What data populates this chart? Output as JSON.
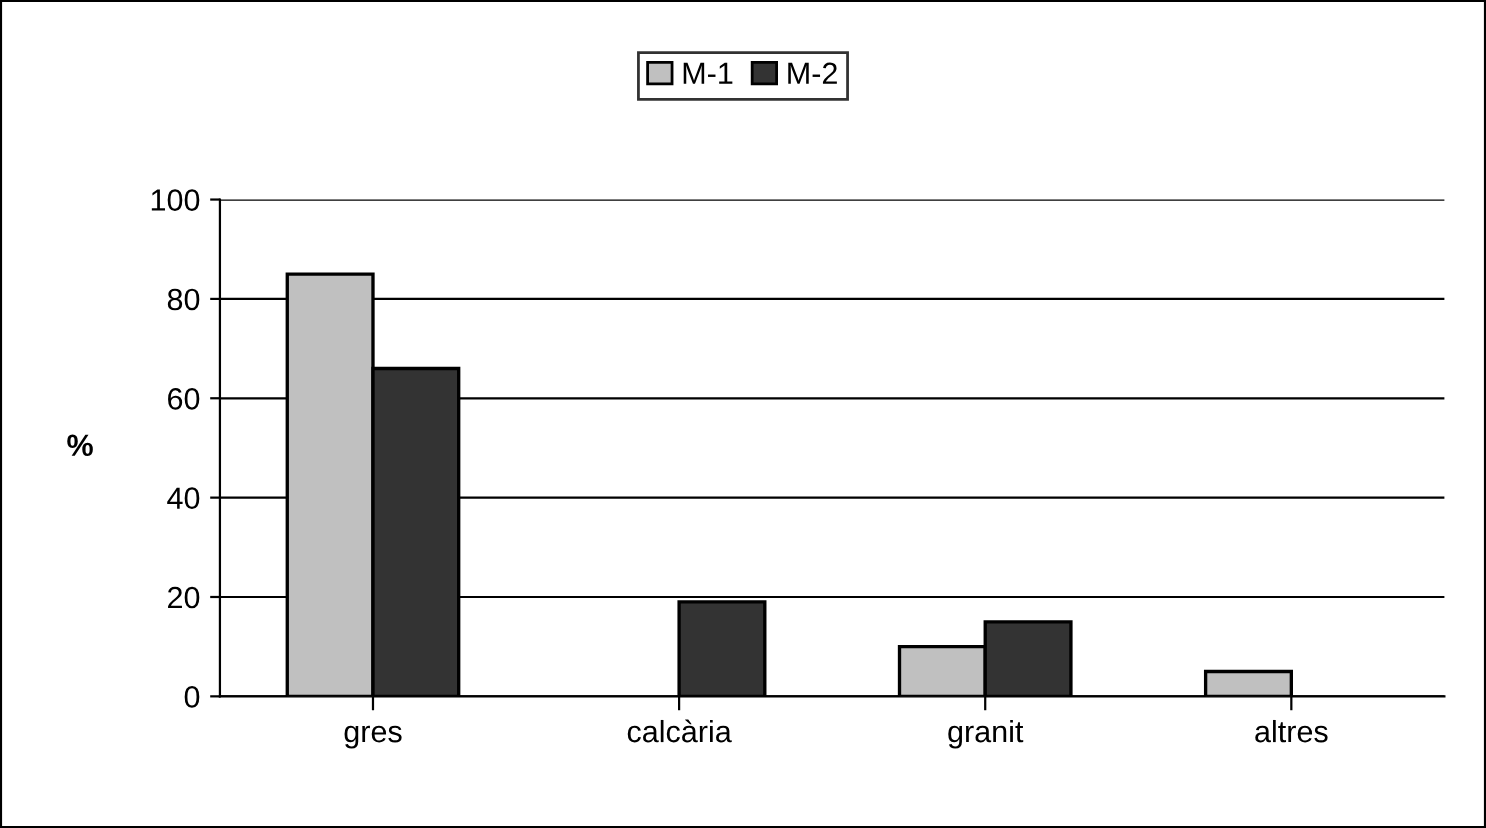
{
  "chart_data": {
    "type": "bar",
    "ylabel": "%",
    "categories": [
      "gres",
      "calcària",
      "granit",
      "altres"
    ],
    "series": [
      {
        "name": "M-1",
        "color": "#c0c0c0",
        "values": [
          85,
          0,
          10,
          5
        ]
      },
      {
        "name": "M-2",
        "color": "#333333",
        "values": [
          66,
          19,
          15,
          0
        ]
      }
    ],
    "ylim": [
      0,
      100
    ],
    "yticks": [
      0,
      20,
      40,
      60,
      80,
      100
    ],
    "grid": "y",
    "legend": "top"
  }
}
